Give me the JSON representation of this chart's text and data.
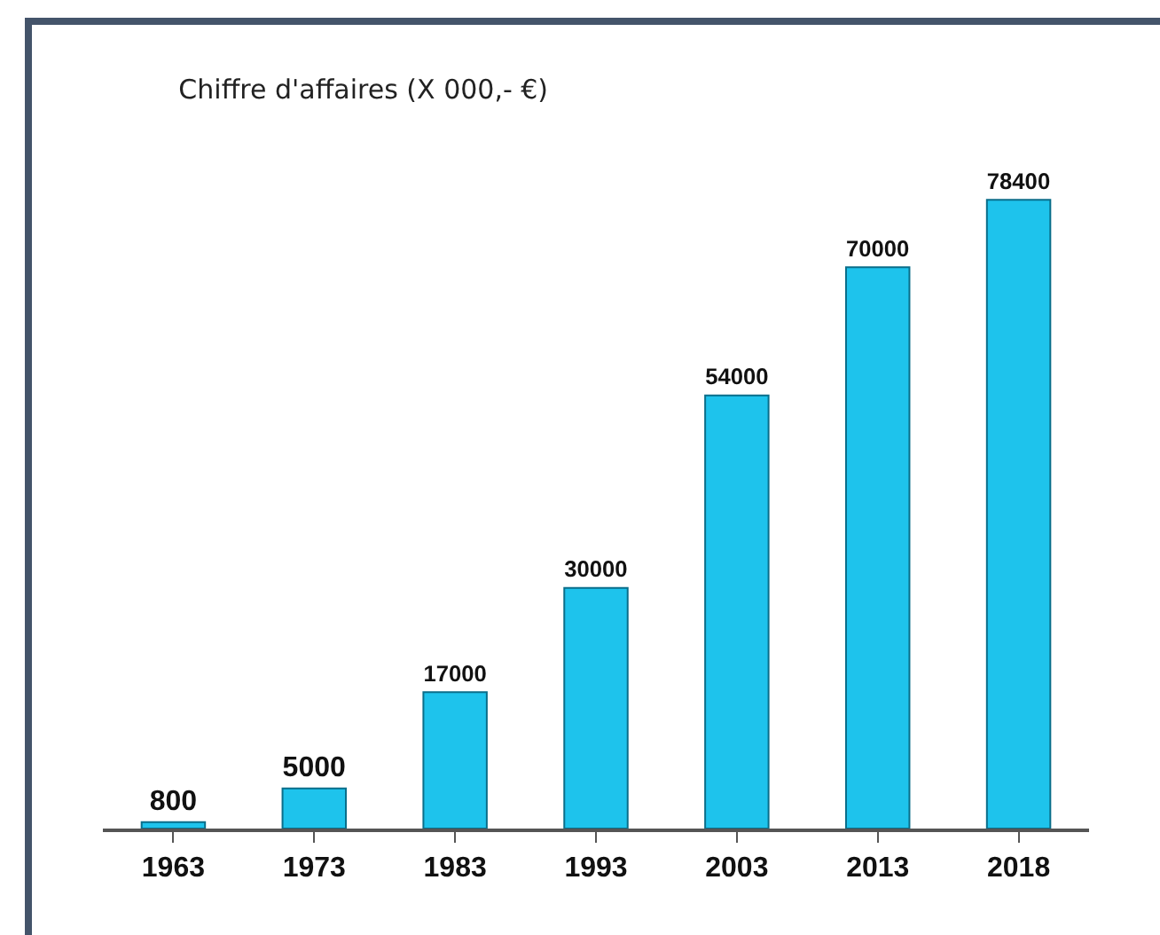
{
  "chart_data": {
    "type": "bar",
    "title": "Chiffre d'affaires (X 000,- €)",
    "categories": [
      "1963",
      "1973",
      "1983",
      "1993",
      "2003",
      "2013",
      "2018"
    ],
    "values": [
      800,
      5000,
      17000,
      30000,
      54000,
      70000,
      78400
    ],
    "color": "#1ec3ec",
    "data_labels": true,
    "grid": false,
    "legend": false
  }
}
